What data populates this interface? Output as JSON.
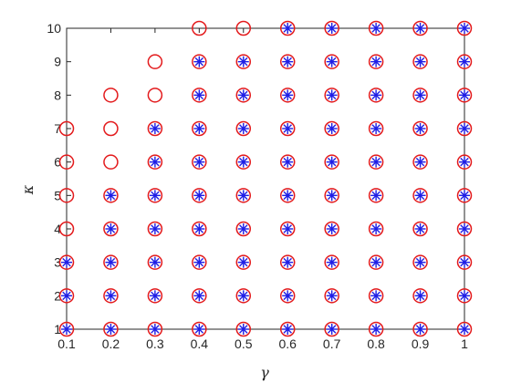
{
  "chart_data": {
    "type": "scatter",
    "title": "",
    "xlabel": "γ",
    "ylabel": "κ",
    "xlim": [
      0.1,
      1
    ],
    "ylim": [
      1,
      10
    ],
    "xticks": [
      "0.1",
      "0.2",
      "0.3",
      "0.4",
      "0.5",
      "0.6",
      "0.7",
      "0.8",
      "0.9",
      "1"
    ],
    "yticks": [
      "1",
      "2",
      "3",
      "4",
      "5",
      "6",
      "7",
      "8",
      "9",
      "10"
    ],
    "grid": false,
    "legend": "none",
    "x_values": [
      0.1,
      0.2,
      0.3,
      0.4,
      0.5,
      0.6,
      0.7,
      0.8,
      0.9,
      1.0
    ],
    "series": [
      {
        "marker": "circle",
        "color": "#e31a1c",
        "min_kappa_by_gamma": [
          1,
          1,
          1,
          1,
          1,
          1,
          1,
          1,
          1,
          1
        ],
        "max_kappa_by_gamma": [
          7,
          8,
          9,
          10,
          10,
          10,
          10,
          10,
          10,
          10
        ]
      },
      {
        "marker": "asterisk",
        "color": "#1f1fe6",
        "min_kappa_by_gamma": [
          1,
          1,
          1,
          1,
          1,
          1,
          1,
          1,
          1,
          1
        ],
        "max_kappa_by_gamma": [
          3,
          5,
          7,
          9,
          9,
          10,
          10,
          10,
          10,
          10
        ]
      }
    ]
  },
  "colors": {
    "axis": "#262626",
    "circle": "#e31a1c",
    "asterisk": "#1f1fe6"
  }
}
